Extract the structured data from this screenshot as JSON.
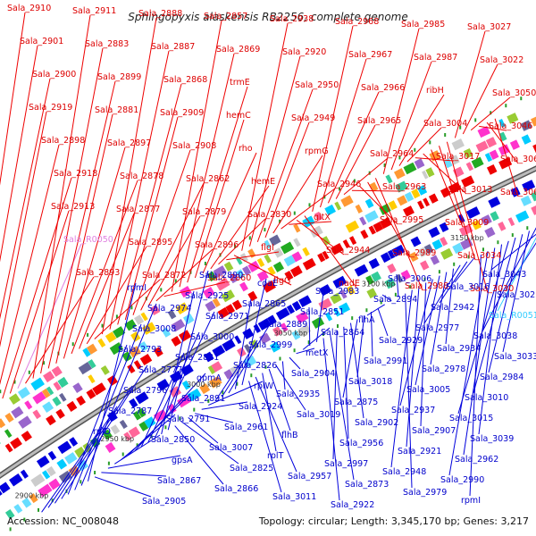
{
  "title": "Sphingopyxis alaskensis RB2256, complete genome",
  "accession": "Accession: NC_008048",
  "summary": "Topology: circular; Length: 3,345,170 bp; Genes: 3,217",
  "colors": {
    "forward": "#ee0000",
    "reverse": "#0000dd",
    "rna": "#e080e0",
    "rna_rev": "#33ccff",
    "backbone": "#999999",
    "tick": "#2a9d2a"
  },
  "scale_labels": [
    "3200 kbp",
    "3150 kbp",
    "3100 kbp",
    "3050 kbp",
    "3000 kbp",
    "2950 kbp",
    "2900 kbp"
  ],
  "forward_labels": [
    "Sala_2910",
    "Sala_2901",
    "Sala_2900",
    "Sala_2919",
    "Sala_2898",
    "Sala_2918",
    "Sala_2913",
    "Sala_R0050",
    "Sala_2893",
    "Sala_2911",
    "Sala_2883",
    "Sala_2899",
    "Sala_2881",
    "Sala_2897",
    "Sala_2878",
    "Sala_2877",
    "Sala_2895",
    "Sala_2872",
    "Sala_2888",
    "Sala_2887",
    "Sala_2868",
    "Sala_2909",
    "Sala_2908",
    "Sala_2862",
    "Sala_2879",
    "Sala_2896",
    "Sala_2860",
    "Sala_2857",
    "Sala_2869",
    "trmE",
    "hemC",
    "rho",
    "hemE",
    "Sala_2830",
    "flgI",
    "flgG",
    "Sala_2938",
    "Sala_2920",
    "Sala_2950",
    "Sala_2949",
    "rpmG",
    "Sala_2946",
    "gltX",
    "Sala_2944",
    "nadE",
    "Sala_2968",
    "Sala_2967",
    "Sala_2966",
    "Sala_2965",
    "Sala_2964",
    "Sala_2963",
    "Sala_2995",
    "Sala_2989",
    "Sala_2988",
    "Sala_2985",
    "Sala_2987",
    "ribH",
    "Sala_3004",
    "Sala_3017",
    "Sala_3013",
    "Sala_3009",
    "Sala_3034",
    "Sala_3030",
    "Sala_3027",
    "Sala_3022",
    "Sala_3050",
    "Sala_3046",
    "Sala_3064",
    "Sala_3063"
  ],
  "reverse_labels": [
    "Sala_3043",
    "Sala_3023",
    "Sala_R0051",
    "Sala_3038",
    "Sala_3033",
    "Sala_2984",
    "Sala_3010",
    "Sala_3015",
    "Sala_3039",
    "Sala_2962",
    "Sala_2990",
    "rpmI",
    "Sala_3016",
    "Sala_2942",
    "Sala_2977",
    "Sala_2934",
    "Sala_2978",
    "Sala_3005",
    "Sala_2937",
    "Sala_2907",
    "Sala_2921",
    "Sala_2948",
    "Sala_2979",
    "Sala_3006",
    "Sala_2894",
    "flhA",
    "Sala_2929",
    "Sala_2991",
    "Sala_3018",
    "Sala_2875",
    "Sala_2902",
    "Sala_2956",
    "Sala_2997",
    "Sala_2873",
    "Sala_2922",
    "Sala_2983",
    "Sala_2851",
    "Sala_2864",
    "metX",
    "Sala_2904",
    "Sala_2935",
    "Sala_3019",
    "flhB",
    "rplT",
    "Sala_2957",
    "Sala_3011",
    "coaE",
    "Sala_2865",
    "Sala_2889",
    "Sala_2999",
    "Sala_2826",
    "rplW",
    "Sala_2924",
    "Sala_2961",
    "Sala_3007",
    "Sala_2825",
    "Sala_2866",
    "Sala_2890",
    "Sala_2925",
    "Sala_2971",
    "Sala_3000",
    "Sala_2821",
    "gpmA",
    "Sala_2891",
    "Sala_2791",
    "Sala_2850",
    "gpsA",
    "Sala_2867",
    "Sala_2905",
    "rpmI",
    "Sala_2974",
    "Sala_3008",
    "Sala_2793",
    "Sala_2777",
    "Sala_2796",
    "Sala_2787",
    "rplD"
  ]
}
